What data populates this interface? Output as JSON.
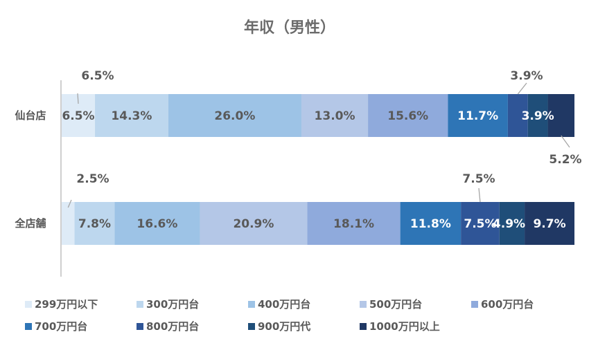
{
  "chart_data": {
    "type": "bar",
    "orientation": "horizontal",
    "stacked": "percent",
    "title": "年収（男性）",
    "categories": [
      "仙台店",
      "全店舗"
    ],
    "series": [
      {
        "name": "299万円以下",
        "values": [
          6.5,
          2.5
        ],
        "color": "#deebf7"
      },
      {
        "name": "300万円台",
        "values": [
          14.3,
          7.8
        ],
        "color": "#bdd7ee"
      },
      {
        "name": "400万円台",
        "values": [
          26.0,
          16.6
        ],
        "color": "#9dc3e6"
      },
      {
        "name": "500万円台",
        "values": [
          13.0,
          20.9
        ],
        "color": "#b4c7e7"
      },
      {
        "name": "600万円台",
        "values": [
          15.6,
          18.1
        ],
        "color": "#8faadc"
      },
      {
        "name": "700万円台",
        "values": [
          11.7,
          11.8
        ],
        "color": "#2e75b6"
      },
      {
        "name": "800万円台",
        "values": [
          3.9,
          7.5
        ],
        "color": "#2f5597"
      },
      {
        "name": "900万円代",
        "values": [
          3.9,
          4.9
        ],
        "color": "#1f4e79"
      },
      {
        "name": "1000万円以上",
        "values": [
          5.2,
          9.7
        ],
        "color": "#203864"
      }
    ],
    "data_labels": [
      [
        "6.5%",
        "14.3%",
        "26.0%",
        "13.0%",
        "15.6%",
        "11.7%",
        "3.9%",
        "3.9%",
        "5.2%"
      ],
      [
        "2.5%",
        "7.8%",
        "16.6%",
        "20.9%",
        "18.1%",
        "11.8%",
        "7.5%",
        "4.9%",
        "9.7%"
      ]
    ],
    "xlim": [
      0,
      100
    ],
    "grid": false,
    "legend_position": "bottom"
  }
}
